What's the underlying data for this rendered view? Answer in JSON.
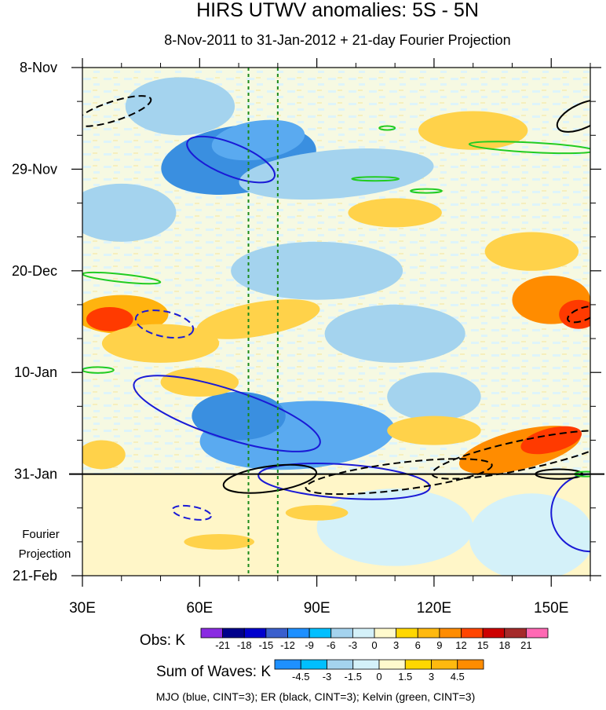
{
  "chart_data": {
    "type": "heatmap",
    "title": "HIRS UTWV anomalies: 5S - 5N",
    "subtitle": "8-Nov-2011 to 31-Jan-2012 + 21-day Fourier Projection",
    "x_axis": {
      "range": [
        30,
        160
      ],
      "ticks": [
        30,
        60,
        90,
        120,
        150
      ],
      "tick_labels": [
        "30E",
        "60E",
        "90E",
        "120E",
        "150E"
      ]
    },
    "y_axis": {
      "range_days": [
        0,
        105
      ],
      "ticks": [
        0,
        21,
        42,
        63,
        84,
        105
      ],
      "tick_labels": [
        "8-Nov",
        "29-Nov",
        "20-Dec",
        "10-Jan",
        "31-Jan",
        "21-Feb"
      ],
      "projection_label": "Fourier\nProjection"
    },
    "observation_end_day": 84,
    "dashed_reference_lons": [
      72.5,
      80
    ],
    "obs_colorbar": {
      "title": "Obs: K",
      "labels": [
        "-21",
        "-18",
        "-15",
        "-12",
        "-9",
        "-6",
        "-3",
        "0",
        "3",
        "6",
        "9",
        "12",
        "15",
        "18",
        "21"
      ],
      "colors": [
        "#8a2be2",
        "#00008b",
        "#0000cd",
        "#3a5fcd",
        "#1e90ff",
        "#00bfff",
        "#a4d3ee",
        "#d4f1f9",
        "#fffacd",
        "#ffd700",
        "#ffb90f",
        "#ff8c00",
        "#ff4500",
        "#cd0000",
        "#a52a2a",
        "#ff69b4"
      ]
    },
    "waves_colorbar": {
      "title": "Sum of Waves: K",
      "labels": [
        "-4.5",
        "-3",
        "-1.5",
        "0",
        "1.5",
        "3",
        "4.5"
      ],
      "colors": [
        "#1e90ff",
        "#00bfff",
        "#a4d3ee",
        "#d4f1f9",
        "#fffacd",
        "#ffd700",
        "#ffb90f",
        "#ff8c00"
      ]
    },
    "footer": "MJO (blue, CINT=3); ER (black, CINT=3); Kelvin (green, CINT=3)",
    "palette": {
      "neg_strong": "#3a8fe0",
      "neg": "#5aaaf0",
      "neg_light": "#a4d3ee",
      "neg_faint": "#d4f1f9",
      "pos_faint": "#fffacd",
      "pos": "#ffd24a",
      "pos_med": "#ffb30f",
      "pos_strong": "#ff8c00",
      "pos_hot": "#ff3a00",
      "mjo": "#1a1ad6",
      "er": "#000000",
      "kelvin": "#22cc22"
    },
    "anomaly_features": [
      {
        "lon": 70,
        "day": 19,
        "rlon": 20,
        "rday": 7,
        "cls": "neg_strong",
        "angle": -8
      },
      {
        "lon": 75,
        "day": 15,
        "rlon": 12,
        "rday": 4,
        "cls": "neg",
        "angle": -8
      },
      {
        "lon": 95,
        "day": 22,
        "rlon": 25,
        "rday": 5,
        "cls": "neg_light",
        "angle": -5
      },
      {
        "lon": 55,
        "day": 8,
        "rlon": 14,
        "rday": 6,
        "cls": "neg_light",
        "angle": 0
      },
      {
        "lon": 40,
        "day": 30,
        "rlon": 14,
        "rday": 6,
        "cls": "neg_light",
        "angle": 0
      },
      {
        "lon": 90,
        "day": 42,
        "rlon": 22,
        "rday": 6,
        "cls": "neg_light",
        "angle": 0
      },
      {
        "lon": 110,
        "day": 55,
        "rlon": 18,
        "rday": 6,
        "cls": "neg_light",
        "angle": 0
      },
      {
        "lon": 85,
        "day": 76,
        "rlon": 25,
        "rday": 7,
        "cls": "neg",
        "angle": -4
      },
      {
        "lon": 70,
        "day": 72,
        "rlon": 12,
        "rday": 5,
        "cls": "neg_strong",
        "angle": 0
      },
      {
        "lon": 120,
        "day": 68,
        "rlon": 12,
        "rday": 5,
        "cls": "neg_light",
        "angle": 0
      },
      {
        "lon": 145,
        "day": 97,
        "rlon": 16,
        "rday": 9,
        "cls": "neg_faint",
        "angle": 0
      },
      {
        "lon": 110,
        "day": 95,
        "rlon": 20,
        "rday": 8,
        "cls": "neg_faint",
        "angle": 0
      },
      {
        "lon": 40,
        "day": 51,
        "rlon": 12,
        "rday": 4,
        "cls": "pos_med",
        "angle": 0
      },
      {
        "lon": 37,
        "day": 52,
        "rlon": 6,
        "rday": 2.5,
        "cls": "pos_hot",
        "angle": 0
      },
      {
        "lon": 75,
        "day": 52,
        "rlon": 16,
        "rday": 3.5,
        "cls": "pos",
        "angle": -10
      },
      {
        "lon": 50,
        "day": 57,
        "rlon": 15,
        "rday": 4,
        "cls": "pos",
        "angle": 0
      },
      {
        "lon": 150,
        "day": 48,
        "rlon": 10,
        "rday": 5,
        "cls": "pos_strong",
        "angle": 0
      },
      {
        "lon": 157,
        "day": 51,
        "rlon": 5,
        "rday": 3,
        "cls": "pos_hot",
        "angle": 0
      },
      {
        "lon": 145,
        "day": 38,
        "rlon": 12,
        "rday": 4,
        "cls": "pos",
        "angle": 0
      },
      {
        "lon": 142,
        "day": 79,
        "rlon": 16,
        "rday": 4,
        "cls": "pos_strong",
        "angle": -14
      },
      {
        "lon": 150,
        "day": 77,
        "rlon": 8,
        "rday": 2.5,
        "cls": "pos_hot",
        "angle": -14
      },
      {
        "lon": 130,
        "day": 13,
        "rlon": 14,
        "rday": 4,
        "cls": "pos",
        "angle": 0
      },
      {
        "lon": 110,
        "day": 30,
        "rlon": 12,
        "rday": 3,
        "cls": "pos",
        "angle": 0
      },
      {
        "lon": 65,
        "day": 98,
        "rlon": 9,
        "rday": 1.6,
        "cls": "pos",
        "angle": 0
      },
      {
        "lon": 90,
        "day": 92,
        "rlon": 8,
        "rday": 1.6,
        "cls": "pos",
        "angle": 0
      },
      {
        "lon": 120,
        "day": 75,
        "rlon": 12,
        "rday": 3,
        "cls": "pos",
        "angle": 0
      },
      {
        "lon": 35,
        "day": 80,
        "rlon": 6,
        "rday": 3,
        "cls": "pos",
        "angle": 0
      },
      {
        "lon": 60,
        "day": 65,
        "rlon": 10,
        "rday": 3,
        "cls": "pos",
        "angle": 0
      }
    ],
    "wave_contours": [
      {
        "kind": "mjo",
        "dashed": false,
        "lon": 67,
        "day": 71.5,
        "rlon": 25,
        "rday": 5,
        "angle": 18
      },
      {
        "kind": "mjo",
        "dashed": false,
        "lon": 68,
        "day": 19,
        "rlon": 12,
        "rday": 3.3,
        "angle": 22
      },
      {
        "kind": "mjo",
        "dashed": true,
        "lon": 51,
        "day": 53,
        "rlon": 7.5,
        "rday": 2.6,
        "angle": 12
      },
      {
        "kind": "mjo",
        "dashed": true,
        "lon": 58,
        "day": 92,
        "rlon": 5,
        "rday": 1.3,
        "angle": 10
      },
      {
        "kind": "mjo",
        "dashed": false,
        "lon": 97,
        "day": 85.5,
        "rlon": 22,
        "rday": 3.5,
        "angle": 4
      },
      {
        "kind": "mjo",
        "dashed": false,
        "lon": 160,
        "day": 92,
        "rlon": 10,
        "rday": 8,
        "angle": 0
      },
      {
        "kind": "er",
        "dashed": true,
        "lon": 38,
        "day": 9,
        "rlon": 10,
        "rday": 2,
        "angle": -18
      },
      {
        "kind": "er",
        "dashed": true,
        "lon": 143,
        "day": 80,
        "rlon": 24,
        "rday": 3,
        "angle": -12
      },
      {
        "kind": "er",
        "dashed": true,
        "lon": 111,
        "day": 84.5,
        "rlon": 24,
        "rday": 2.8,
        "angle": -7
      },
      {
        "kind": "er",
        "dashed": false,
        "lon": 78,
        "day": 85,
        "rlon": 12,
        "rday": 2.6,
        "angle": -8
      },
      {
        "kind": "er",
        "dashed": false,
        "lon": 158,
        "day": 10,
        "rlon": 7,
        "rday": 2.5,
        "angle": -25
      },
      {
        "kind": "er",
        "dashed": true,
        "lon": 158,
        "day": 51,
        "rlon": 4,
        "rday": 1.3,
        "angle": -20
      },
      {
        "kind": "er",
        "dashed": false,
        "lon": 152,
        "day": 84,
        "rlon": 6,
        "rday": 1,
        "angle": 0
      },
      {
        "kind": "kelvin",
        "dashed": false,
        "lon": 145,
        "day": 16.5,
        "rlon": 16,
        "rday": 1,
        "angle": 3
      },
      {
        "kind": "kelvin",
        "dashed": false,
        "lon": 105,
        "day": 23,
        "rlon": 6,
        "rday": 0.4,
        "angle": 0
      },
      {
        "kind": "kelvin",
        "dashed": false,
        "lon": 118,
        "day": 25.5,
        "rlon": 4,
        "rday": 0.4,
        "angle": 0
      },
      {
        "kind": "kelvin",
        "dashed": false,
        "lon": 108,
        "day": 12.5,
        "rlon": 2,
        "rday": 0.4,
        "angle": 0
      },
      {
        "kind": "kelvin",
        "dashed": false,
        "lon": 40,
        "day": 43.5,
        "rlon": 10,
        "rday": 0.8,
        "angle": 6
      },
      {
        "kind": "kelvin",
        "dashed": false,
        "lon": 34,
        "day": 62.5,
        "rlon": 4,
        "rday": 0.6,
        "angle": 0
      },
      {
        "kind": "kelvin",
        "dashed": false,
        "lon": 159,
        "day": 84,
        "rlon": 3,
        "rday": 0.5,
        "angle": 0
      }
    ]
  }
}
